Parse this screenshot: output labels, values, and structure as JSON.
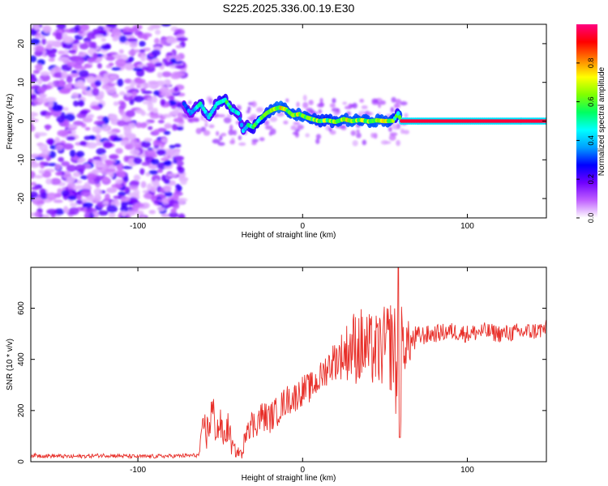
{
  "figure_title": "S225.2025.336.00.19.E30",
  "chart_data": [
    {
      "type": "heatmap",
      "title": "S225.2025.336.00.19.E30",
      "xlabel": "Height of straight line (km)",
      "ylabel": "Frequency (Hz)",
      "xlim": [
        -165,
        148
      ],
      "ylim": [
        -25,
        25
      ],
      "x_ticks": [
        -100,
        0,
        100
      ],
      "y_ticks": [
        -20,
        -10,
        0,
        10,
        20
      ],
      "colorbar": {
        "label": "Normalized spectral amplitude",
        "range": [
          0,
          1
        ],
        "ticks": [
          0.0,
          0.2,
          0.4,
          0.6,
          0.8
        ],
        "colors": [
          "#ffffff",
          "#c060ff",
          "#7000ff",
          "#0000ff",
          "#00a0ff",
          "#00ffff",
          "#00ff60",
          "#80ff00",
          "#ffff00",
          "#ff8000",
          "#ff0000",
          "#ff0080"
        ]
      },
      "ridge": {
        "description": "dominant frequency trace vs height",
        "x": [
          -72,
          -68,
          -62,
          -57,
          -52,
          -47,
          -43,
          -39,
          -36,
          -33,
          -30,
          -26,
          -22,
          -18,
          -14,
          -10,
          -6,
          -2,
          2,
          6,
          10,
          15,
          20,
          25,
          30,
          35,
          40,
          45,
          50,
          55,
          58,
          60,
          70,
          80,
          90,
          95,
          100,
          110,
          120,
          130,
          140,
          148
        ],
        "freq": [
          4.5,
          2.0,
          4.5,
          1.0,
          4.5,
          5.5,
          3.0,
          2.0,
          -2.5,
          -1.0,
          -1.5,
          0.5,
          2.0,
          3.0,
          3.5,
          3.0,
          1.5,
          1.8,
          1.0,
          0.5,
          0.0,
          0.2,
          -0.2,
          0.5,
          0.0,
          0.3,
          -0.1,
          0.2,
          0.0,
          0.1,
          2.0,
          0.0,
          0.0,
          0.0,
          0.0,
          0.0,
          0.0,
          0.0,
          0.0,
          0.0,
          0.0,
          0.0
        ],
        "amplitude": [
          0.35,
          0.4,
          0.5,
          0.45,
          0.5,
          0.55,
          0.5,
          0.45,
          0.45,
          0.5,
          0.55,
          0.6,
          0.65,
          0.7,
          0.75,
          0.7,
          0.7,
          0.72,
          0.7,
          0.68,
          0.65,
          0.65,
          0.68,
          0.7,
          0.72,
          0.7,
          0.7,
          0.72,
          0.7,
          0.68,
          0.5,
          0.95,
          0.95,
          0.95,
          0.95,
          0.95,
          0.95,
          0.95,
          0.95,
          0.95,
          0.95,
          0.95
        ]
      },
      "noise_region": {
        "x_range": [
          -165,
          -72
        ],
        "freq_range": [
          -25,
          25
        ],
        "amplitude": "low (0.05–0.25)"
      }
    },
    {
      "type": "line",
      "xlabel": "Height of straight line (km)",
      "ylabel": "SNR (10 * v/v)",
      "xlim": [
        -165,
        148
      ],
      "ylim": [
        0,
        760
      ],
      "x_ticks": [
        -100,
        0,
        100
      ],
      "y_ticks": [
        0,
        200,
        400,
        600
      ],
      "series": [
        {
          "name": "SNR",
          "color": "#e8302a",
          "x": [
            -165,
            -140,
            -120,
            -100,
            -80,
            -63,
            -60,
            -58,
            -55,
            -52,
            -50,
            -48,
            -45,
            -43,
            -40,
            -38,
            -36,
            -35,
            -33,
            -30,
            -25,
            -20,
            -15,
            -10,
            -5,
            0,
            5,
            10,
            15,
            20,
            25,
            30,
            35,
            40,
            45,
            50,
            55,
            58,
            60,
            62,
            65,
            70,
            80,
            90,
            100,
            110,
            120,
            130,
            140,
            148
          ],
          "y": [
            25,
            20,
            25,
            20,
            22,
            25,
            150,
            110,
            200,
            120,
            150,
            90,
            140,
            60,
            35,
            40,
            20,
            130,
            160,
            140,
            180,
            170,
            200,
            240,
            250,
            280,
            290,
            320,
            370,
            400,
            420,
            450,
            450,
            440,
            430,
            450,
            460,
            300,
            400,
            470,
            460,
            490,
            500,
            510,
            500,
            510,
            500,
            505,
            510,
            520
          ],
          "noise_amp": [
            8,
            8,
            8,
            8,
            8,
            8,
            60,
            80,
            90,
            70,
            60,
            50,
            60,
            40,
            20,
            20,
            15,
            60,
            70,
            60,
            60,
            60,
            60,
            60,
            60,
            60,
            60,
            60,
            70,
            80,
            100,
            140,
            160,
            140,
            150,
            160,
            200,
            230,
            220,
            120,
            80,
            40,
            35,
            35,
            35,
            35,
            35,
            35,
            35,
            35
          ],
          "peak": {
            "x": 58,
            "y": 760
          },
          "dip": {
            "x": 59,
            "y": 95
          }
        }
      ]
    }
  ]
}
